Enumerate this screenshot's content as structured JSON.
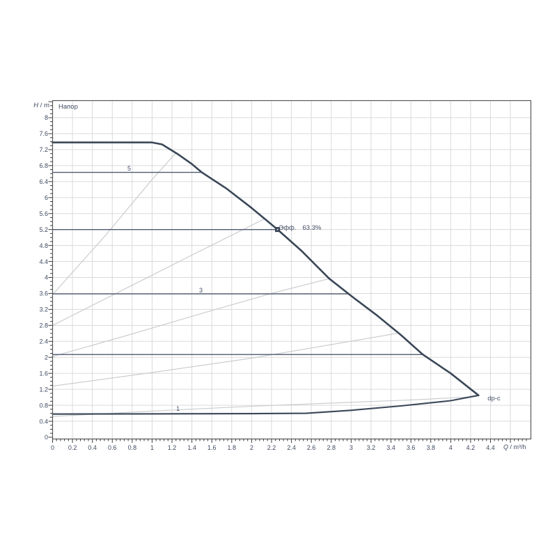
{
  "chart": {
    "title": "Напор",
    "y_axis": {
      "symbol": "H",
      "unit": " / m"
    },
    "x_axis": {
      "symbol": "Q",
      "unit": " / m³/h"
    },
    "annotations": {
      "efficiency_label": "Эфф.",
      "efficiency_value": "63.3%",
      "control_mode": "dp-c",
      "setting_5": "5",
      "setting_3": "3",
      "setting_1": "1"
    }
  },
  "chart_data": {
    "type": "line",
    "title": "Напор",
    "xlabel": "Q / m³/h",
    "ylabel": "H / m",
    "xlim": [
      0,
      4.8
    ],
    "ylim": [
      0,
      8.43
    ],
    "grid": true,
    "x_tick_labels": [
      "0",
      "0.2",
      "0.4",
      "0.6",
      "0.8",
      "1",
      "1.2",
      "1.4",
      "1.6",
      "1.8",
      "2",
      "2.2",
      "2.4",
      "2.6",
      "2.8",
      "3",
      "3.2",
      "3.4",
      "3.6",
      "3.8",
      "4",
      "4.2",
      "4.4"
    ],
    "y_tick_labels": [
      "0",
      "0.4",
      "0.8",
      "1.2",
      "1.6",
      "2",
      "2.4",
      "2.8",
      "3.2",
      "3.6",
      "4",
      "4.4",
      "4.8",
      "5.2",
      "5.6",
      "6",
      "6.4",
      "6.8",
      "7.2",
      "7.6",
      "8"
    ],
    "x_grid_step": 0.2,
    "y_grid_step": 0.4,
    "x_minor_step": 0.04,
    "y_minor_step": 0.1,
    "colors": {
      "pump_curve": "#3a4757",
      "control_line": "#4e5a6e",
      "speed_curve": "#c6c9cc",
      "grid": "#dadada",
      "frame": "#585858",
      "tick": "#3c3c3c",
      "text": "#3f4a60",
      "marker": "#333e52"
    },
    "series": [
      {
        "name": "pump-curve-max-speed",
        "role": "max speed curve",
        "width": 2.6,
        "points": [
          [
            0,
            7.38
          ],
          [
            1.0,
            7.38
          ],
          [
            1.1,
            7.33
          ],
          [
            1.25,
            7.1
          ],
          [
            1.4,
            6.84
          ],
          [
            1.5,
            6.63
          ],
          [
            1.75,
            6.22
          ],
          [
            2.0,
            5.74
          ],
          [
            2.26,
            5.2
          ],
          [
            2.5,
            4.67
          ],
          [
            2.78,
            3.97
          ],
          [
            3.0,
            3.54
          ],
          [
            3.25,
            3.07
          ],
          [
            3.5,
            2.56
          ],
          [
            3.72,
            2.07
          ],
          [
            4.0,
            1.6
          ],
          [
            4.28,
            1.05
          ]
        ]
      },
      {
        "name": "pump-curve-min-speed",
        "role": "min speed curve / setting 1",
        "width": 2.1,
        "points": [
          [
            0,
            0.58
          ],
          [
            1.0,
            0.585
          ],
          [
            2.0,
            0.59
          ],
          [
            2.55,
            0.6
          ],
          [
            3.0,
            0.675
          ],
          [
            3.5,
            0.785
          ],
          [
            4.0,
            0.915
          ],
          [
            4.28,
            1.05
          ]
        ]
      },
      {
        "name": "speed-curve-a",
        "role": "reference curve",
        "width": 1.1,
        "gray": true,
        "points": [
          [
            0,
            3.57
          ],
          [
            0.52,
            5.02
          ],
          [
            1.0,
            6.45
          ],
          [
            1.24,
            7.12
          ]
        ]
      },
      {
        "name": "speed-curve-b",
        "role": "reference curve",
        "width": 1.1,
        "gray": true,
        "points": [
          [
            0,
            2.8
          ],
          [
            0.7,
            3.68
          ],
          [
            1.4,
            4.56
          ],
          [
            2.13,
            5.47
          ]
        ]
      },
      {
        "name": "speed-curve-c",
        "role": "reference curve",
        "width": 1.1,
        "gray": true,
        "points": [
          [
            0,
            2.02
          ],
          [
            0.75,
            2.55
          ],
          [
            1.5,
            3.1
          ],
          [
            2.2,
            3.6
          ],
          [
            2.78,
            3.97
          ]
        ]
      },
      {
        "name": "speed-curve-d",
        "role": "reference curve",
        "width": 1.1,
        "gray": true,
        "points": [
          [
            0,
            1.28
          ],
          [
            1.0,
            1.62
          ],
          [
            2.0,
            1.98
          ],
          [
            2.8,
            2.32
          ],
          [
            3.46,
            2.6
          ]
        ]
      },
      {
        "name": "speed-curve-e",
        "role": "reference curve",
        "width": 1.1,
        "gray": true,
        "points": [
          [
            0,
            0.52
          ],
          [
            1.0,
            0.655
          ],
          [
            2.0,
            0.775
          ],
          [
            3.0,
            0.875
          ],
          [
            3.7,
            0.945
          ],
          [
            4.26,
            1.02
          ]
        ]
      }
    ],
    "control_lines": [
      {
        "label": "5",
        "h": 6.63,
        "q_end": 1.5,
        "label_q": 0.77,
        "label_h": 6.73
      },
      {
        "label": "",
        "h": 5.2,
        "q_end": 2.26,
        "selected": true
      },
      {
        "label": "3",
        "h": 3.59,
        "q_end": 2.97,
        "label_q": 1.49,
        "label_h": 3.68
      },
      {
        "label": "",
        "h": 2.07,
        "q_end": 3.72
      },
      {
        "label": "1",
        "h": 0.585,
        "q_end": 0,
        "label_q": 1.26,
        "label_h": 0.71
      }
    ],
    "operating_point": {
      "q": 2.26,
      "h": 5.2,
      "efficiency": "63.3%"
    },
    "labels": {
      "efficiency": {
        "q": 2.22,
        "h": 5.45
      },
      "dp_c": {
        "text": "dp-c",
        "q": 4.37,
        "h": 0.95
      }
    }
  }
}
